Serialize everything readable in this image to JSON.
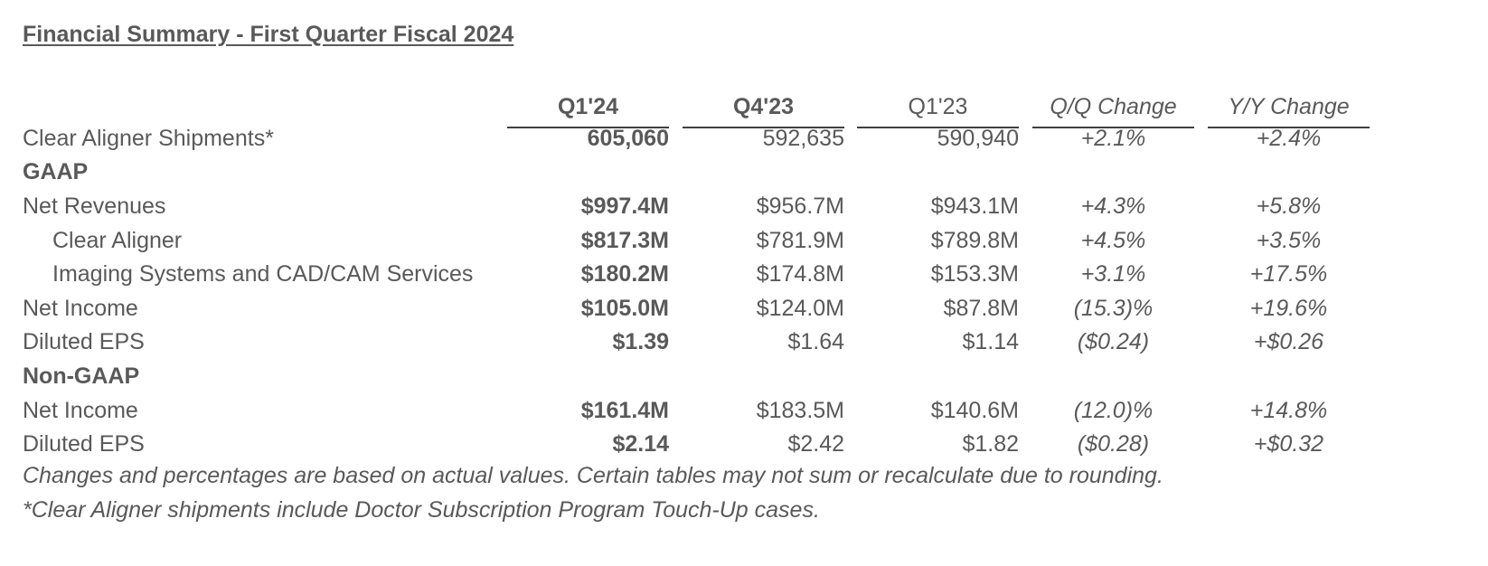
{
  "title": "Financial Summary - First Quarter Fiscal 2024",
  "columns": [
    "Q1'24",
    "Q4'23",
    "Q1'23",
    "Q/Q Change",
    "Y/Y Change"
  ],
  "rows": [
    {
      "label": "Clear Aligner Shipments*",
      "values": [
        "605,060",
        "592,635",
        "590,940",
        "+2.1%",
        "+2.4%"
      ]
    },
    {
      "label": "GAAP"
    },
    {
      "label": "Net Revenues",
      "values": [
        "$997.4M",
        "$956.7M",
        "$943.1M",
        "+4.3%",
        "+5.8%"
      ]
    },
    {
      "label": "Clear Aligner",
      "values": [
        "$817.3M",
        "$781.9M",
        "$789.8M",
        "+4.5%",
        "+3.5%"
      ]
    },
    {
      "label": "Imaging Systems and CAD/CAM Services",
      "values": [
        "$180.2M",
        "$174.8M",
        "$153.3M",
        "+3.1%",
        "+17.5%"
      ]
    },
    {
      "label": "Net Income",
      "values": [
        "$105.0M",
        "$124.0M",
        "$87.8M",
        "(15.3)%",
        "+19.6%"
      ]
    },
    {
      "label": "Diluted EPS",
      "values": [
        "$1.39",
        "$1.64",
        "$1.14",
        "($0.24)",
        "+$0.26"
      ]
    },
    {
      "label": "Non-GAAP"
    },
    {
      "label": "Net Income",
      "values": [
        "$161.4M",
        "$183.5M",
        "$140.6M",
        "(12.0)%",
        "+14.8%"
      ]
    },
    {
      "label": "Diluted EPS",
      "values": [
        "$2.14",
        "$2.42",
        "$1.82",
        "($0.28)",
        "+$0.32"
      ]
    }
  ],
  "notes": [
    "Changes and percentages are based on actual values. Certain tables may not sum or recalculate due to rounding.",
    "*Clear Aligner shipments include Doctor Subscription Program Touch-Up cases."
  ],
  "colors": {
    "text": "#595959",
    "rule": "#404040"
  }
}
